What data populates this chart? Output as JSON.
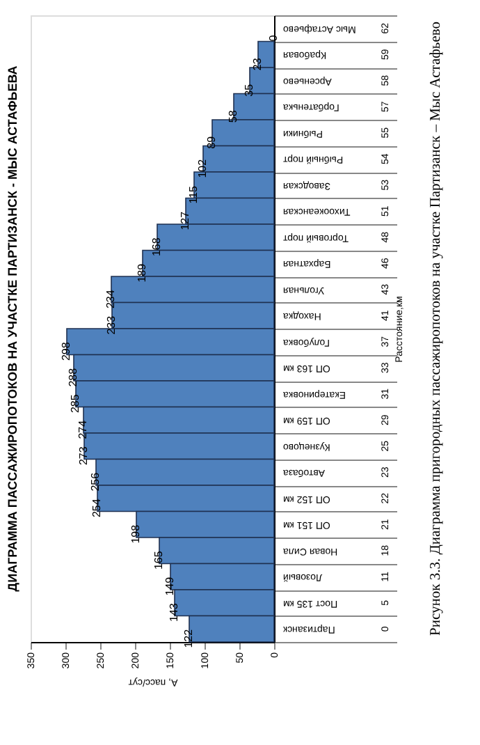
{
  "chart_data": {
    "type": "bar",
    "orientation": "horizontal",
    "title": "ДИАГРАММА ПАССАЖИРОПОТОКОВ НА УЧАСТКЕ ПАРТИЗАНСК - МЫС АСТАФЬЕВА",
    "xlabel": "А, пасс/сут",
    "ylabel": "Расстояние,км",
    "categories": [
      "Мыс Астафьево",
      "Крабовая",
      "Арсеньево",
      "Горбатенька",
      "Рыбники",
      "Рыбный порт",
      "Заводская",
      "Тихоокеанская",
      "Торговый порт",
      "Бархатная",
      "Угольная",
      "Находка",
      "Голубовка",
      "ОП 163 км",
      "Екатериновка",
      "ОП 159 км",
      "Кузнецово",
      "Автобаза",
      "ОП 152 км",
      "ОП 151 км",
      "Новая Сила",
      "Лозовый",
      "Пост 135 км",
      "Партизанск"
    ],
    "y2_categories": [
      "62",
      "59",
      "58",
      "57",
      "55",
      "54",
      "53",
      "51",
      "48",
      "46",
      "43",
      "41",
      "37",
      "33",
      "31",
      "29",
      "25",
      "23",
      "22",
      "21",
      "18",
      "11",
      "5",
      "0"
    ],
    "values": [
      0,
      23,
      35,
      58,
      89,
      102,
      115,
      127,
      168,
      189,
      234,
      233,
      298,
      288,
      285,
      274,
      273,
      256,
      254,
      198,
      165,
      149,
      143,
      122
    ],
    "color": "#4f81bd",
    "xlim": [
      350,
      0
    ],
    "xticks": [
      0,
      50,
      100,
      150,
      200,
      250,
      300,
      350
    ],
    "data_labels": true,
    "grid": false,
    "annotations": [
      "Рисунок 3.3. Диаграмма пригородных пассажиропотоков на участке Партизанск – Мыс Астафьево"
    ]
  }
}
